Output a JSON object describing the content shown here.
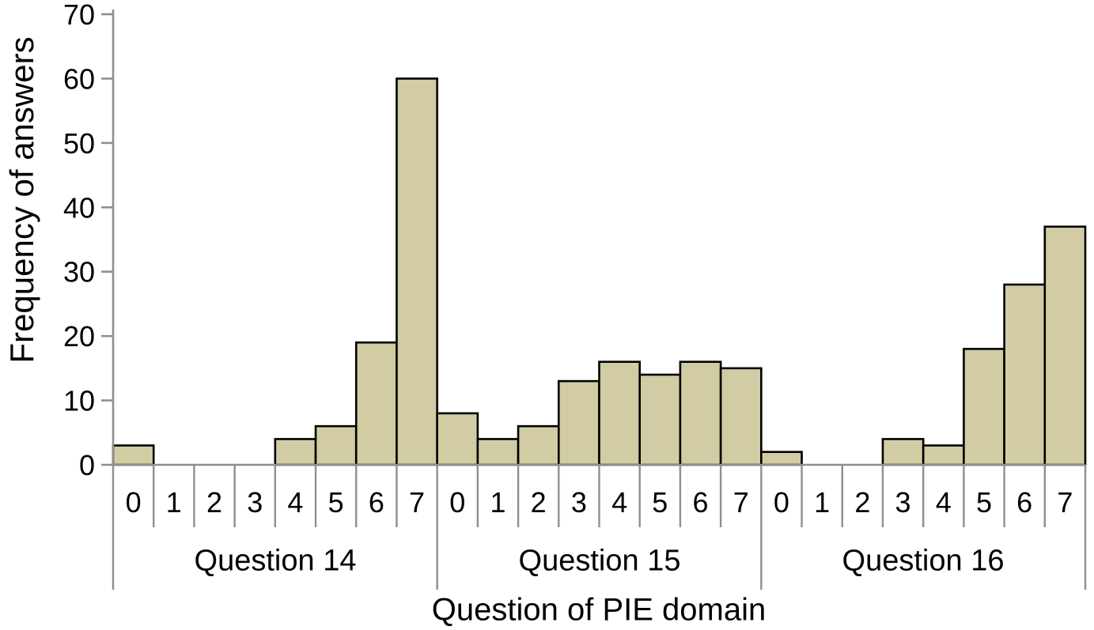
{
  "chart_data": {
    "type": "bar",
    "title": "",
    "xlabel": "Question of PIE domain",
    "ylabel": "Frequency of answers",
    "ylim": [
      0,
      70
    ],
    "yticks": [
      0,
      10,
      20,
      30,
      40,
      50,
      60,
      70
    ],
    "grid": false,
    "legend": false,
    "categories_per_group": [
      "0",
      "1",
      "2",
      "3",
      "4",
      "5",
      "6",
      "7"
    ],
    "groups": [
      {
        "label": "Question 14",
        "values": [
          3,
          0,
          0,
          0,
          4,
          6,
          19,
          60
        ]
      },
      {
        "label": "Question 15",
        "values": [
          8,
          4,
          6,
          13,
          16,
          14,
          16,
          15
        ]
      },
      {
        "label": "Question 16",
        "values": [
          2,
          0,
          0,
          4,
          3,
          18,
          28,
          37
        ]
      }
    ],
    "colors": {
      "bar_fill": "#d2cca4",
      "bar_stroke": "#000000",
      "axis": "#8f8f8f",
      "text": "#000000",
      "background": "#ffffff"
    }
  }
}
